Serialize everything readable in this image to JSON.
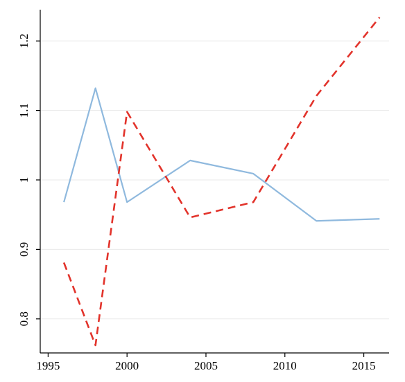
{
  "chart_data": {
    "type": "line",
    "title": "",
    "xlabel": "",
    "ylabel": "",
    "xlim": [
      1994.5,
      2016.6
    ],
    "ylim": [
      0.751,
      1.245
    ],
    "x_ticks": [
      1995,
      2000,
      2005,
      2010,
      2015
    ],
    "x_tick_labels": [
      "1995",
      "2000",
      "2005",
      "2010",
      "2015"
    ],
    "y_ticks": [
      0.8,
      0.9,
      1.0,
      1.1,
      1.2
    ],
    "y_tick_labels": [
      "0.8",
      "0.9",
      "1",
      "1.1",
      "1.2"
    ],
    "grid": "horizontal",
    "legend": "none",
    "series": [
      {
        "color": "#8fb9de",
        "style": "solid",
        "x": [
          1996,
          1998,
          2000,
          2004,
          2008,
          2012,
          2016
        ],
        "values": [
          0.968,
          1.132,
          0.968,
          1.028,
          1.009,
          0.941,
          0.944
        ]
      },
      {
        "color": "#e2332b",
        "style": "dashed",
        "x": [
          1996,
          1998,
          2000,
          2004,
          2008,
          2012,
          2016
        ],
        "values": [
          0.881,
          0.762,
          1.098,
          0.946,
          0.968,
          1.121,
          1.234
        ]
      }
    ]
  }
}
